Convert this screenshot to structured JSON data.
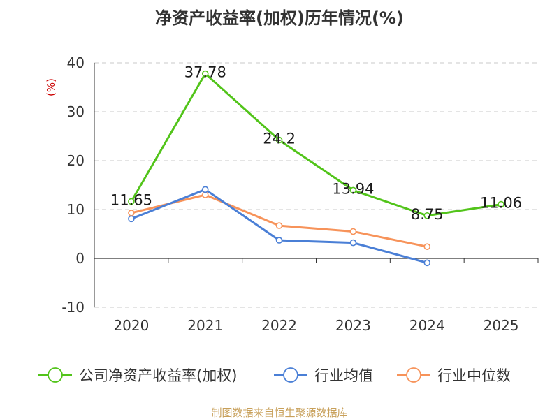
{
  "chart_data": {
    "type": "line",
    "title": "净资产收益率(加权)历年情况(%)",
    "ylabel": "(%)",
    "xlabel": "",
    "ylim": [
      -10,
      40
    ],
    "yticks": [
      40,
      30,
      20,
      10,
      0,
      -10
    ],
    "grid": true,
    "legend_position": "bottom",
    "categories": [
      "2020",
      "2021",
      "2022",
      "2023",
      "2024",
      "2025"
    ],
    "series": [
      {
        "name": "公司净资产收益率(加权)",
        "color": "#52c41a",
        "values": [
          11.65,
          37.78,
          24.2,
          13.94,
          8.75,
          11.06
        ],
        "labels": [
          "11.65",
          "37.78",
          "24.2",
          "13.94",
          "8.75",
          "11.06"
        ]
      },
      {
        "name": "行业均值",
        "color": "#4a7fd6",
        "values": [
          8.1,
          14.1,
          3.7,
          3.2,
          -0.9,
          null
        ]
      },
      {
        "name": "行业中位数",
        "color": "#f7935a",
        "values": [
          9.3,
          13.0,
          6.7,
          5.5,
          2.4,
          null
        ]
      }
    ],
    "unit_color": "#cc0000"
  },
  "source": {
    "text": "制图数据来自恒生聚源数据库",
    "color": "#c8a05a"
  }
}
